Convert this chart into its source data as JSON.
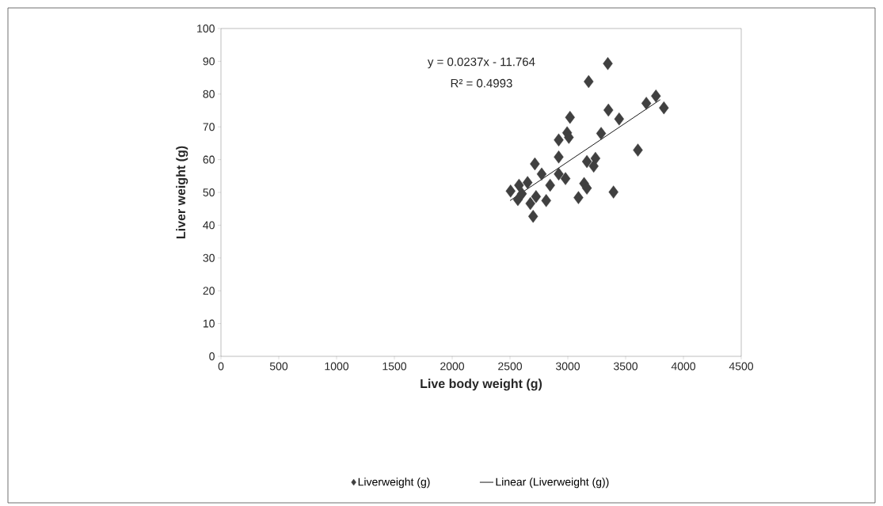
{
  "chart_data": {
    "type": "scatter",
    "xlabel": "Live body weight (g)",
    "ylabel": "Liver weight (g)",
    "xlim": [
      0,
      4500
    ],
    "xticks": [
      0,
      500,
      1000,
      1500,
      2000,
      2500,
      3000,
      3500,
      4000,
      4500
    ],
    "ylim": [
      0,
      100
    ],
    "yticks": [
      0,
      10,
      20,
      30,
      40,
      50,
      60,
      70,
      80,
      90,
      100
    ],
    "grid": false,
    "legend": "bottom",
    "annotations": [
      "y = 0.0237x - 11.764",
      "R² = 0.4993"
    ],
    "series": [
      {
        "name": "Liverweight (g)",
        "marker": "diamond",
        "color": "#404040",
        "x": [
          3346,
          3180,
          3762,
          3679,
          3831,
          3351,
          3444,
          3019,
          3288,
          2994,
          2921,
          3009,
          3606,
          2921,
          3165,
          3239,
          3224,
          2715,
          2980,
          2774,
          2652,
          2847,
          3141,
          3165,
          2505,
          3395,
          3092,
          2813,
          2568,
          2676,
          2700,
          2725,
          2603,
          2921,
          2578
        ],
        "values": [
          89.3,
          83.8,
          79.4,
          77.2,
          75.8,
          75.1,
          72.4,
          72.9,
          68.0,
          68.2,
          66.0,
          66.8,
          62.9,
          60.8,
          59.4,
          60.4,
          58.0,
          58.7,
          54.2,
          55.6,
          53.0,
          52.2,
          52.7,
          51.3,
          50.4,
          50.1,
          48.4,
          47.5,
          47.8,
          46.6,
          42.7,
          48.7,
          49.6,
          55.6,
          52.2
        ]
      },
      {
        "name": "Linear (Liverweight (g))",
        "type": "line",
        "marker": "none",
        "color": "#000000",
        "x": [
          2500,
          3800
        ],
        "values": [
          47.5,
          78.3
        ]
      }
    ]
  }
}
